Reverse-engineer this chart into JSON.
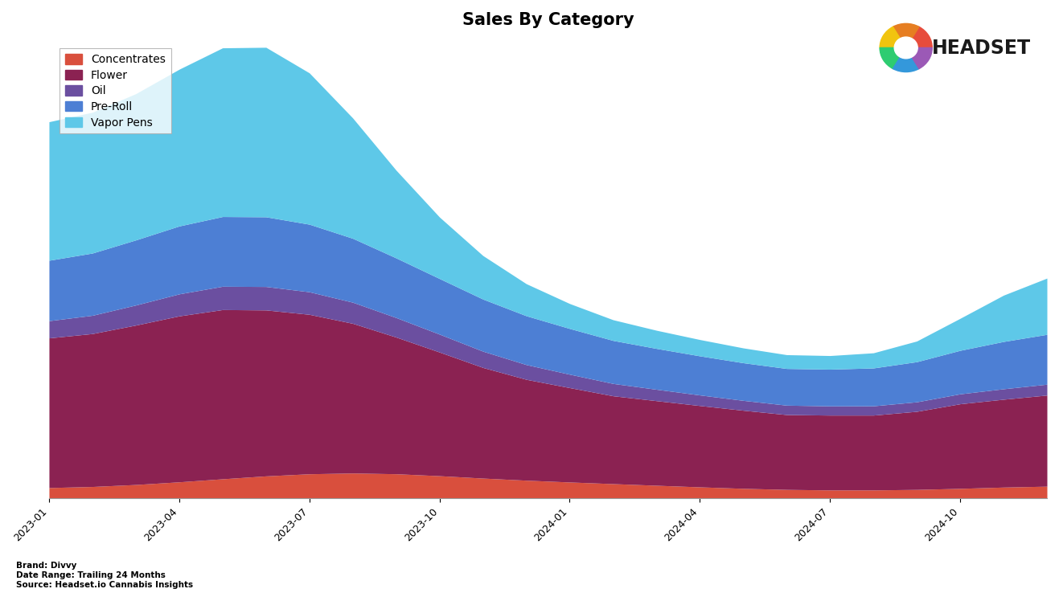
{
  "title": "Sales By Category",
  "categories": [
    "Concentrates",
    "Flower",
    "Oil",
    "Pre-Roll",
    "Vapor Pens"
  ],
  "colors": [
    "#d94f3d",
    "#8b2252",
    "#6b4fa0",
    "#4d7fd4",
    "#5ec8e8"
  ],
  "x_labels": [
    "2023-01",
    "2023-04",
    "2023-07",
    "2023-10",
    "2024-01",
    "2024-04",
    "2024-07",
    "2024-10"
  ],
  "n_points": 24,
  "concentrates": [
    3,
    3.5,
    4,
    5,
    6,
    7,
    8,
    8,
    8,
    7,
    6,
    5.5,
    5,
    4.5,
    4,
    3.5,
    3,
    2.5,
    2.5,
    2.5,
    2.5,
    3,
    3.5,
    4
  ],
  "flower": [
    45,
    47,
    49,
    52,
    54,
    53,
    50,
    47,
    42,
    38,
    34,
    31,
    29,
    27,
    26,
    25,
    24,
    23,
    23,
    23,
    24,
    26,
    28,
    30
  ],
  "oil": [
    5,
    5.5,
    6,
    7,
    7.5,
    7.5,
    7,
    6.5,
    6,
    5.5,
    5,
    4.5,
    4,
    3.8,
    3.5,
    3.2,
    3,
    2.8,
    2.8,
    2.8,
    2.9,
    3,
    3.2,
    3.5
  ],
  "preroll": [
    18,
    19,
    20,
    21,
    22,
    22,
    21,
    20,
    18,
    17,
    16,
    15,
    14,
    13,
    12.5,
    12,
    11.5,
    11,
    11,
    11.5,
    12,
    13,
    15,
    16
  ],
  "vaporpens": [
    42,
    43,
    44,
    45,
    55,
    60,
    48,
    38,
    24,
    17,
    12,
    9,
    7,
    6,
    5.5,
    5,
    4.5,
    4,
    4,
    4,
    4.5,
    8,
    16,
    20
  ],
  "footer_brand": "Brand: Divvy",
  "footer_daterange": "Date Range: Trailing 24 Months",
  "footer_source": "Source: Headset.io Cannabis Insights",
  "legend_fontsize": 10,
  "title_fontsize": 15,
  "tick_fontsize": 9,
  "footer_fontsize": 7.5
}
